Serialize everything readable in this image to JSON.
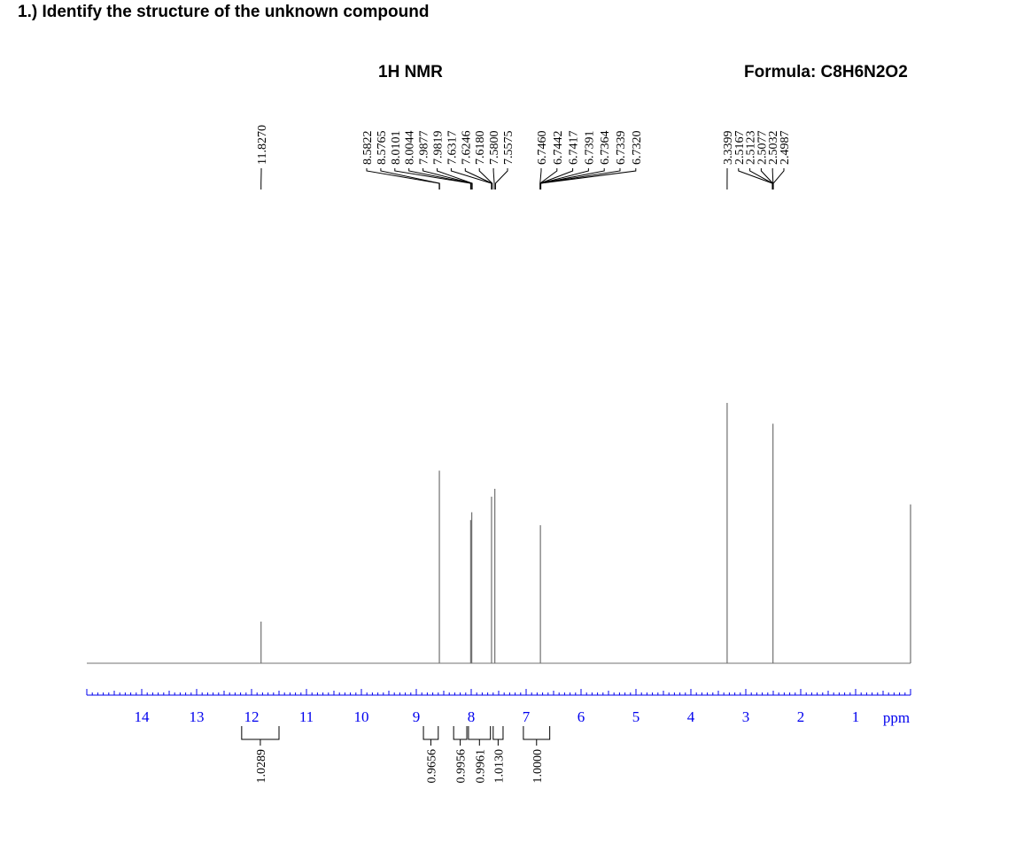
{
  "question": "1.) Identify the structure of the unknown compound",
  "chart_title": "1H NMR",
  "formula": "Formula: C8H6N2O2",
  "chart_data": {
    "type": "line",
    "title": "1H NMR",
    "xlabel": "ppm",
    "xlim": [
      15.0,
      0.0
    ],
    "x_ticks": [
      "14",
      "13",
      "12",
      "11",
      "10",
      "9",
      "8",
      "7",
      "6",
      "5",
      "4",
      "3",
      "2",
      "1"
    ],
    "x_unit_label": "ppm",
    "colors": {
      "spectrum": "#707070",
      "axis": "#0000ee",
      "labels": "#000000"
    },
    "peak_labels": [
      "11.8270",
      "8.5822",
      "8.5765",
      "8.0101",
      "8.0044",
      "7.9877",
      "7.9819",
      "7.6317",
      "7.6246",
      "7.6180",
      "7.5800",
      "7.5575",
      "6.7460",
      "6.7442",
      "6.7417",
      "6.7391",
      "6.7364",
      "6.7339",
      "6.7320",
      "3.3399",
      "2.5167",
      "2.5123",
      "2.5077",
      "2.5032",
      "2.4987"
    ],
    "peaks": [
      {
        "ppm": 11.827,
        "height": 0.16
      },
      {
        "ppm": 8.58,
        "height": 0.74
      },
      {
        "ppm": 8.01,
        "height": 0.55
      },
      {
        "ppm": 7.99,
        "height": 0.58
      },
      {
        "ppm": 7.63,
        "height": 0.64
      },
      {
        "ppm": 7.57,
        "height": 0.67
      },
      {
        "ppm": 6.74,
        "height": 0.53
      },
      {
        "ppm": 3.34,
        "height": 1.0
      },
      {
        "ppm": 2.505,
        "height": 0.92
      },
      {
        "ppm": 0.0,
        "height": 0.61
      }
    ],
    "integrations": [
      {
        "label": "1.0289",
        "from": 12.18,
        "to": 11.5
      },
      {
        "label": "0.9656",
        "from": 8.87,
        "to": 8.6
      },
      {
        "label": "0.9956",
        "from": 8.32,
        "to": 8.08
      },
      {
        "label": "0.9961",
        "from": 8.05,
        "to": 7.65
      },
      {
        "label": "1.0130",
        "from": 7.6,
        "to": 7.42
      },
      {
        "label": "1.0000",
        "from": 7.05,
        "to": 6.57
      }
    ]
  }
}
